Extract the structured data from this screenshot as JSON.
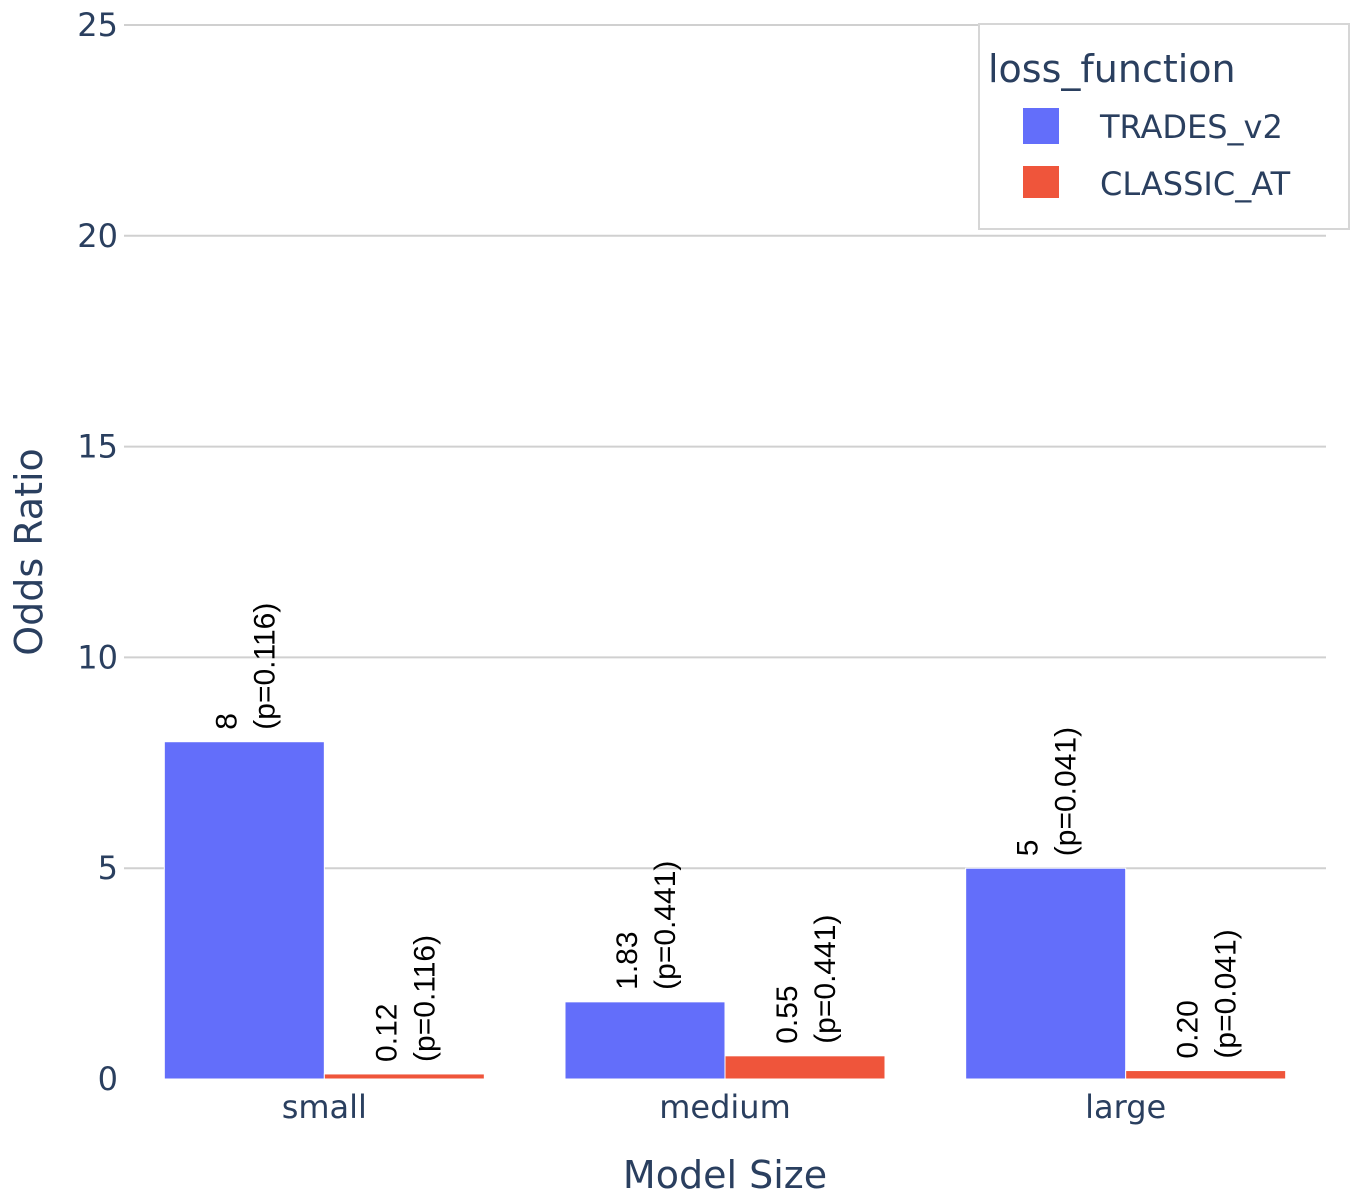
{
  "chart_data": {
    "type": "bar",
    "categories": [
      "small",
      "medium",
      "large"
    ],
    "series": [
      {
        "name": "TRADES_v2",
        "color": "#636efa",
        "values": [
          8,
          1.83,
          5
        ],
        "value_labels": [
          "8",
          "1.83",
          "5"
        ],
        "p_labels": [
          "(p=0.116)",
          "(p=0.441)",
          "(p=0.041)"
        ]
      },
      {
        "name": "CLASSIC_AT",
        "color": "#ef553b",
        "values": [
          0.12,
          0.55,
          0.2
        ],
        "value_labels": [
          "0.12",
          "0.55",
          "0.20"
        ],
        "p_labels": [
          "(p=0.116)",
          "(p=0.441)",
          "(p=0.041)"
        ]
      }
    ],
    "xlabel": "Model Size",
    "ylabel": "Odds Ratio",
    "ylim": [
      0,
      25
    ],
    "yticks": [
      0,
      5,
      10,
      15,
      20,
      25
    ],
    "grid": true,
    "legend": {
      "title": "loss_function",
      "placement": "top-right"
    }
  }
}
